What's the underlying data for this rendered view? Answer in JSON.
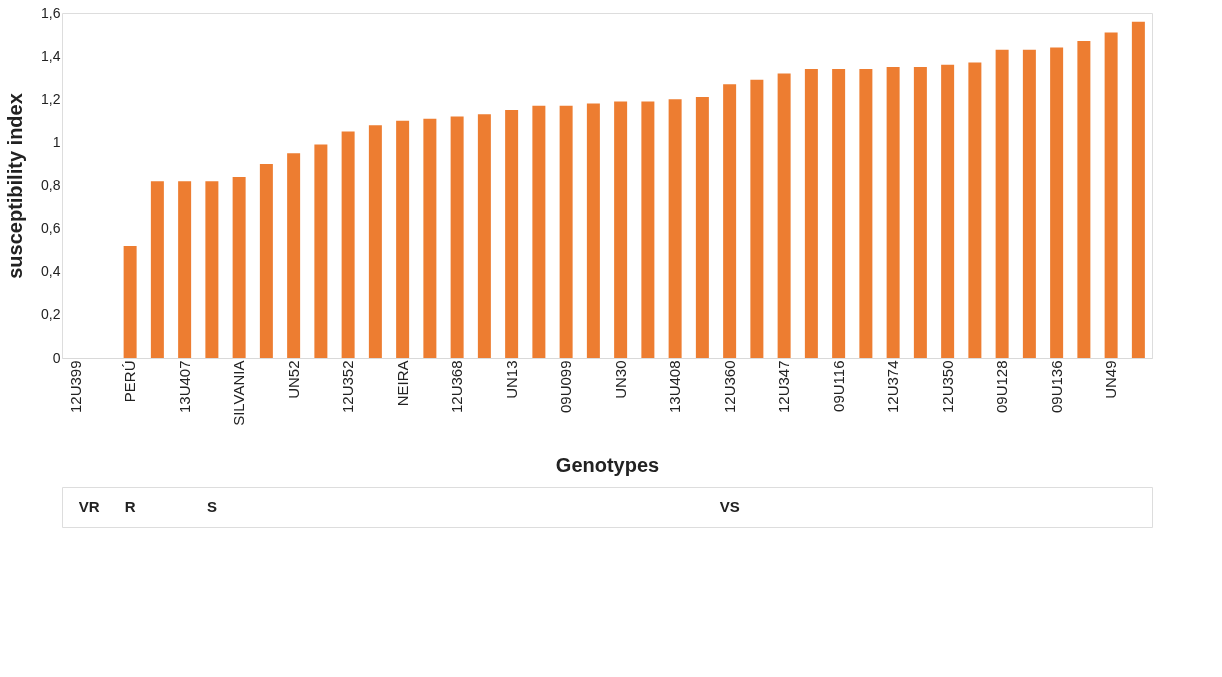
{
  "chart_data": {
    "type": "bar",
    "xlabel": "Genotypes",
    "ylabel": "susceptibility index",
    "color": "#ed7d31",
    "categories": [
      "12U399",
      null,
      "PERÚ",
      null,
      "13U407",
      null,
      "SILVANIA",
      null,
      "UN52",
      null,
      "12U352",
      null,
      "NEIRA",
      null,
      "12U368",
      null,
      "UN13",
      null,
      "09U099",
      null,
      "UN30",
      null,
      "13U408",
      null,
      "12U360",
      null,
      "12U347",
      null,
      "09U116",
      null,
      "12U374",
      null,
      "12U350",
      null,
      "09U128",
      null,
      "09U136",
      null,
      "UN49",
      null
    ],
    "values": [
      0,
      0,
      0.52,
      0.82,
      0.82,
      0.82,
      0.84,
      0.9,
      0.95,
      0.99,
      1.05,
      1.08,
      1.1,
      1.11,
      1.12,
      1.13,
      1.15,
      1.17,
      1.17,
      1.18,
      1.19,
      1.19,
      1.2,
      1.21,
      1.27,
      1.29,
      1.32,
      1.34,
      1.34,
      1.34,
      1.35,
      1.35,
      1.36,
      1.37,
      1.43,
      1.43,
      1.44,
      1.47,
      1.51,
      1.56
    ],
    "ylim": [
      0,
      1.6
    ],
    "yticks": [
      0,
      {
        "value": 0.2,
        "label": "0,2"
      },
      {
        "value": 0.4,
        "label": "0,4"
      },
      {
        "value": 0.6,
        "label": "0,6"
      },
      {
        "value": 0.8,
        "label": "0,8"
      },
      1,
      {
        "value": 1.2,
        "label": "1,2"
      },
      {
        "value": 1.4,
        "label": "1,4"
      },
      {
        "value": 1.6,
        "label": "1,6"
      }
    ],
    "grid": false,
    "annotations": [
      "VR",
      "R",
      "S",
      "VS"
    ]
  }
}
